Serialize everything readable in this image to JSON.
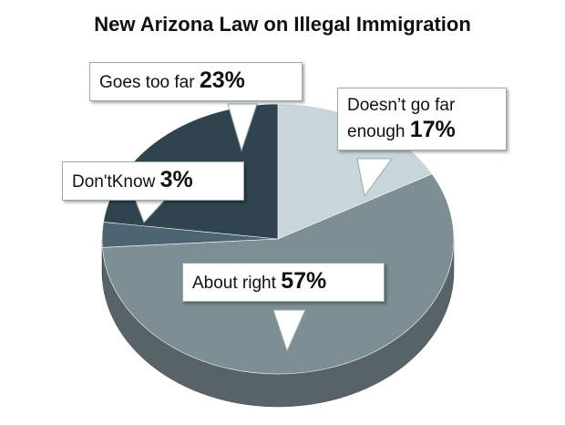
{
  "chart_data": {
    "type": "pie",
    "title": "New Arizona Law on Illegal Immigration",
    "categories": [
      "Doesn’t go far enough",
      "About right",
      "Don'tKnow",
      "Goes too far"
    ],
    "values": [
      17,
      57,
      3,
      23
    ],
    "value_labels": [
      "17%",
      "57%",
      "3%",
      "23%"
    ],
    "colors": [
      "#c8d5db",
      "#7e8e95",
      "#4d6570",
      "#2f444f"
    ]
  }
}
